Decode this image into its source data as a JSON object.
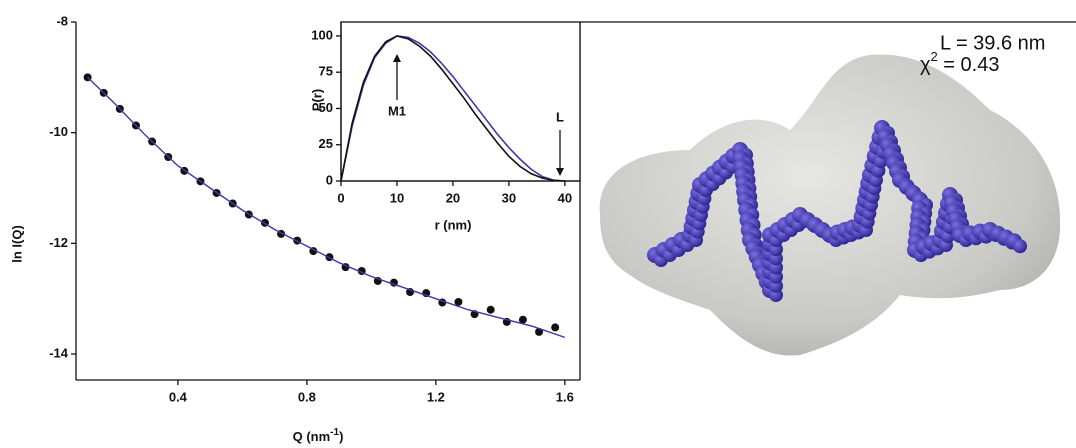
{
  "chart_data": [
    {
      "type": "scatter",
      "xlabel": "Q (nm",
      "xlabel_exponent": "-1",
      "xlabel_end": ")",
      "ylabel": "ln I(Q)",
      "xlim": [
        0.084,
        1.647
      ],
      "ylim": [
        -14.47,
        -8
      ],
      "xticks": [
        0.4,
        0.8,
        1.2,
        1.6
      ],
      "yticks": [
        -8,
        -10,
        -12,
        -14
      ],
      "series": [
        {
          "color": "#111111",
          "marker": "circle",
          "x": [
            0.12,
            0.17,
            0.22,
            0.27,
            0.32,
            0.37,
            0.42,
            0.47,
            0.52,
            0.57,
            0.62,
            0.67,
            0.72,
            0.77,
            0.82,
            0.87,
            0.92,
            0.97,
            1.02,
            1.07,
            1.12,
            1.17,
            1.22,
            1.27,
            1.32,
            1.37,
            1.42,
            1.47,
            1.52,
            1.57
          ],
          "values": [
            -9.0,
            -9.28,
            -9.57,
            -9.87,
            -10.16,
            -10.44,
            -10.69,
            -10.88,
            -11.09,
            -11.28,
            -11.48,
            -11.63,
            -11.83,
            -11.95,
            -12.14,
            -12.25,
            -12.43,
            -12.5,
            -12.68,
            -12.71,
            -12.88,
            -12.9,
            -13.07,
            -13.06,
            -13.28,
            -13.2,
            -13.42,
            -13.38,
            -13.6,
            -13.52
          ]
        },
        {
          "color": "#3a3aa8",
          "marker": "line",
          "x": [
            0.12,
            0.2,
            0.3,
            0.4,
            0.5,
            0.6,
            0.7,
            0.8,
            0.9,
            1.0,
            1.1,
            1.2,
            1.3,
            1.4,
            1.5,
            1.6
          ],
          "values": [
            -9.0,
            -9.45,
            -10.05,
            -10.6,
            -11.0,
            -11.4,
            -11.75,
            -12.05,
            -12.35,
            -12.6,
            -12.8,
            -13.0,
            -13.2,
            -13.35,
            -13.5,
            -13.7
          ]
        }
      ]
    },
    {
      "type": "line",
      "xlabel": "r (nm)",
      "ylabel": "P(r)",
      "annotations": [
        "M1",
        "L"
      ],
      "xlim": [
        0,
        42.7
      ],
      "ylim": [
        0,
        109.6
      ],
      "xticks": [
        0,
        10,
        20,
        30,
        40
      ],
      "yticks": [
        0,
        25,
        50,
        75,
        100
      ],
      "x": [
        0,
        2,
        4,
        6,
        8,
        10,
        12,
        14,
        16,
        18,
        20,
        22,
        24,
        26,
        28,
        30,
        32,
        34,
        36,
        38,
        40
      ],
      "series": [
        {
          "color": "#3a3aa8",
          "values": [
            0,
            38,
            66,
            85,
            95,
            100,
            99,
            95,
            89,
            81,
            72,
            62,
            52,
            42,
            32,
            23,
            15,
            8,
            3,
            0.5,
            0
          ]
        },
        {
          "color": "#111111",
          "values": [
            0,
            40,
            68,
            86,
            96,
            100,
            98,
            93,
            86,
            77,
            67,
            57,
            46,
            36,
            26,
            17,
            10,
            5,
            2,
            0.5,
            0
          ]
        }
      ]
    }
  ],
  "model_panel": {
    "length_label": "L = 39.6 nm",
    "chi_symbol": "χ",
    "chi_exponent": "2",
    "chi_value": " = 0.43"
  }
}
